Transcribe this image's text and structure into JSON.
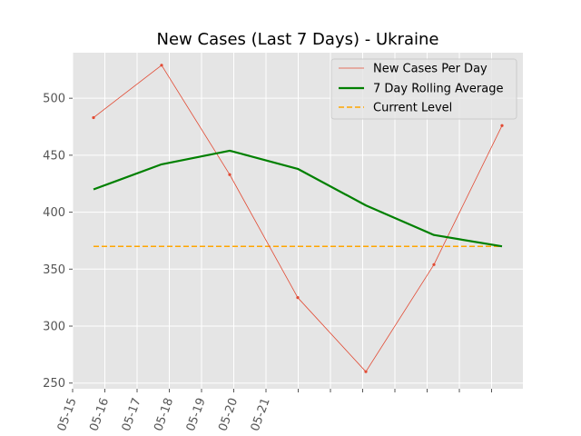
{
  "chart_data": {
    "type": "line",
    "title": "New Cases (Last 7 Days) - Ukraine",
    "xlabel": "",
    "ylabel": "",
    "x_tick_labels": [
      "05-15",
      "05-16",
      "05-17",
      "05-18",
      "05-19",
      "05-20",
      "05-21"
    ],
    "y_ticks": [
      250,
      300,
      350,
      400,
      450,
      500
    ],
    "ylim": [
      245,
      540
    ],
    "grid": true,
    "legend_position": "top-right",
    "series": [
      {
        "name": "New Cases Per Day",
        "style": "thin line with point markers",
        "color": "#e24a33",
        "values": [
          483,
          529,
          433,
          325,
          260,
          354,
          476
        ]
      },
      {
        "name": "7 Day Rolling Average",
        "style": "thick line",
        "color": "#008000",
        "values": [
          420,
          442,
          454,
          438,
          406,
          380,
          370
        ]
      },
      {
        "name": "Current Level",
        "style": "dashed line",
        "color": "#ffa500",
        "values": [
          370,
          370,
          370,
          370,
          370,
          370,
          370
        ]
      }
    ]
  }
}
